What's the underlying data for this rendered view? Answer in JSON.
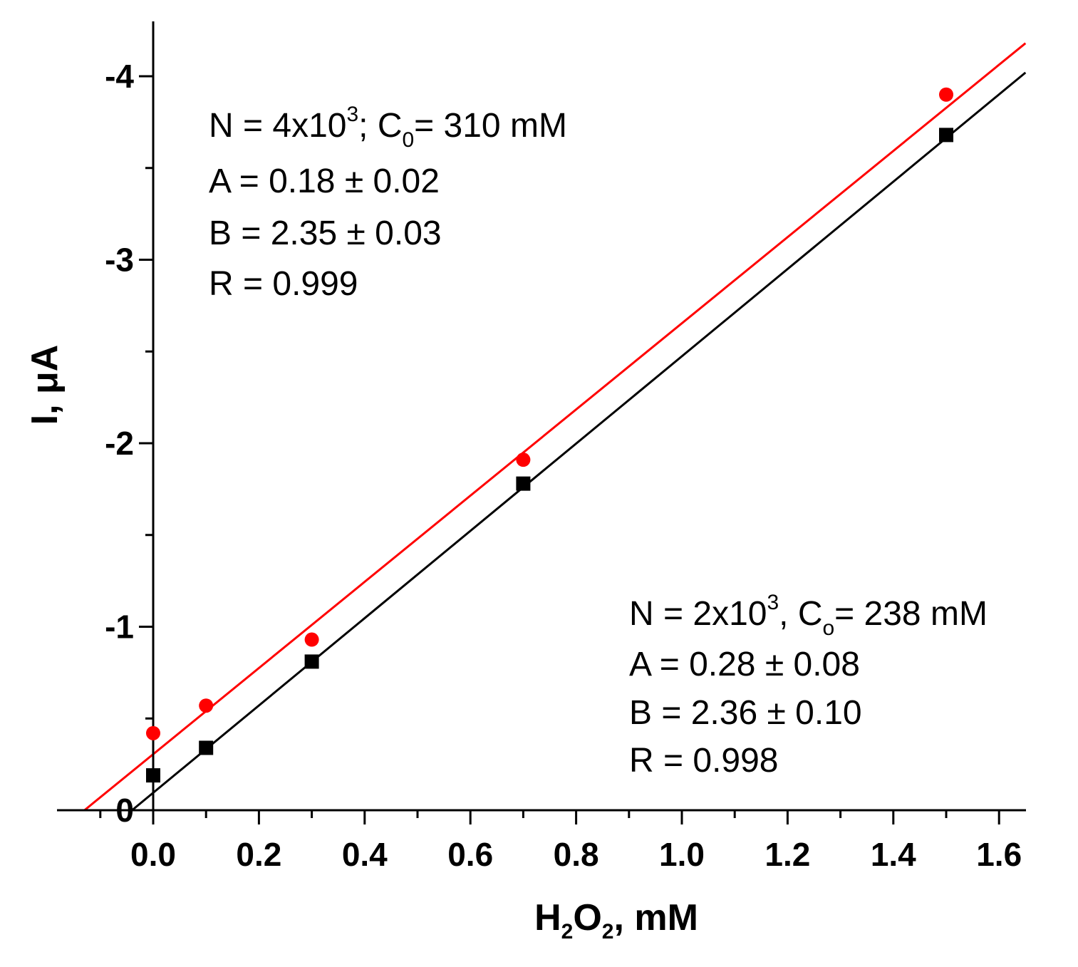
{
  "chart_data": {
    "type": "scatter",
    "xlabel": {
      "base1": "H",
      "sub1": "2",
      "base2": "O",
      "sub2": "2",
      "rest": ", mM"
    },
    "ylabel": "I, μA",
    "xlim": [
      -0.185,
      1.65
    ],
    "ylim": [
      0,
      -4.3
    ],
    "y_axis_reversed": true,
    "x_ticks": [
      0.0,
      0.2,
      0.4,
      0.6,
      0.8,
      1.0,
      1.2,
      1.4,
      1.6
    ],
    "x_tick_labels": [
      "0.0",
      "0.2",
      "0.4",
      "0.6",
      "0.8",
      "1.0",
      "1.2",
      "1.4",
      "1.6"
    ],
    "x_minor_ticks": [
      -0.1,
      0.1,
      0.3,
      0.5,
      0.7,
      0.9,
      1.1,
      1.3,
      1.5
    ],
    "y_ticks": [
      0,
      -1,
      -2,
      -3,
      -4
    ],
    "y_tick_labels": [
      "0",
      "-1",
      "-2",
      "-3",
      "-4"
    ],
    "y_minor_ticks": [
      -0.5,
      -1.5,
      -2.5,
      -3.5
    ],
    "series": [
      {
        "name": "N = 4x10^3; C0 = 310 mM",
        "color": "#ff0000",
        "marker": "circle",
        "x": [
          0.0,
          0.1,
          0.3,
          0.7,
          1.5
        ],
        "y": [
          -0.42,
          -0.57,
          -0.93,
          -1.91,
          -3.9
        ],
        "fit": {
          "x": [
            -0.13,
            1.65
          ],
          "y": [
            0.0,
            -4.18
          ]
        }
      },
      {
        "name": "N = 2x10^3, Co = 238 mM",
        "color": "#000000",
        "marker": "square",
        "x": [
          0.0,
          0.1,
          0.3,
          0.7,
          1.5
        ],
        "y": [
          -0.19,
          -0.34,
          -0.81,
          -1.78,
          -3.68
        ],
        "fit": {
          "x": [
            -0.04,
            1.65
          ],
          "y": [
            0.0,
            -4.02
          ]
        }
      }
    ],
    "annotations": [
      {
        "id": "red",
        "line1": {
          "a": "N = 4x10",
          "sup": "3",
          "b": "; C",
          "sub": "0",
          "c": "= 310 mM"
        },
        "lines": [
          "A = 0.18 ± 0.02",
          "B = 2.35 ± 0.03",
          "R = 0.999"
        ]
      },
      {
        "id": "black",
        "line1": {
          "a": "N = 2x10",
          "sup": "3",
          "b": ", C",
          "sub": "o",
          "c": "= 238 mM"
        },
        "lines": [
          "A = 0.28 ± 0.08",
          "B = 2.36 ± 0.10",
          "R = 0.998"
        ]
      }
    ]
  }
}
